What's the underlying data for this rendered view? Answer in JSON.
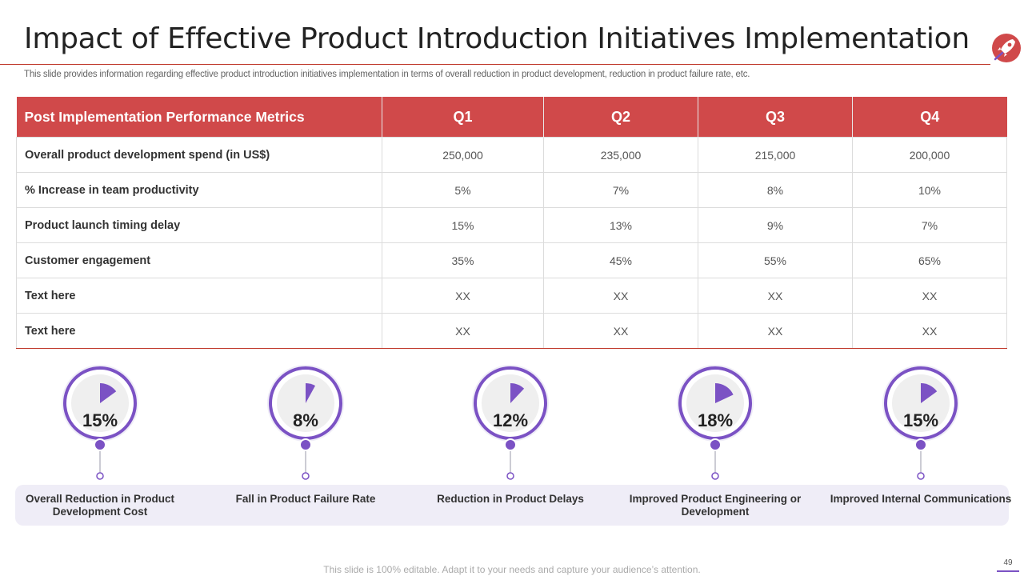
{
  "header": {
    "title": "Impact of Effective Product Introduction Initiatives Implementation",
    "subtitle": "This slide provides information regarding effective product introduction initiatives implementation in terms of overall reduction in product development, reduction in product failure rate, etc.",
    "logo_icon": "rocket-icon"
  },
  "table": {
    "headers": [
      "Post Implementation Performance Metrics",
      "Q1",
      "Q2",
      "Q3",
      "Q4"
    ],
    "rows": [
      {
        "metric": "Overall product development spend (in US$)",
        "q1": "250,000",
        "q2": "235,000",
        "q3": "215,000",
        "q4": "200,000"
      },
      {
        "metric": "% Increase in team productivity",
        "q1": "5%",
        "q2": "7%",
        "q3": "8%",
        "q4": "10%"
      },
      {
        "metric": "Product launch timing delay",
        "q1": "15%",
        "q2": "13%",
        "q3": "9%",
        "q4": "7%"
      },
      {
        "metric": "Customer engagement",
        "q1": "35%",
        "q2": "45%",
        "q3": "55%",
        "q4": "65%"
      },
      {
        "metric": "Text here",
        "q1": "XX",
        "q2": "XX",
        "q3": "XX",
        "q4": "XX"
      },
      {
        "metric": "Text here",
        "q1": "XX",
        "q2": "XX",
        "q3": "XX",
        "q4": "XX"
      }
    ]
  },
  "kpis": [
    {
      "value": 15,
      "display": "15%",
      "label": "Overall Reduction in Product Development Cost"
    },
    {
      "value": 8,
      "display": "8%",
      "label": "Fall in Product Failure Rate"
    },
    {
      "value": 12,
      "display": "12%",
      "label": "Reduction in Product Delays"
    },
    {
      "value": 18,
      "display": "18%",
      "label": "Improved Product Engineering or Development"
    },
    {
      "value": 15,
      "display": "15%",
      "label": "Improved Internal Communications"
    }
  ],
  "footer": {
    "note": "This slide is 100% editable. Adapt it to your needs and capture your audience’s attention.",
    "page_number": "49"
  },
  "colors": {
    "accent_red": "#d0494a",
    "accent_purple": "#7b52c4",
    "band_bg": "#efedf7"
  }
}
